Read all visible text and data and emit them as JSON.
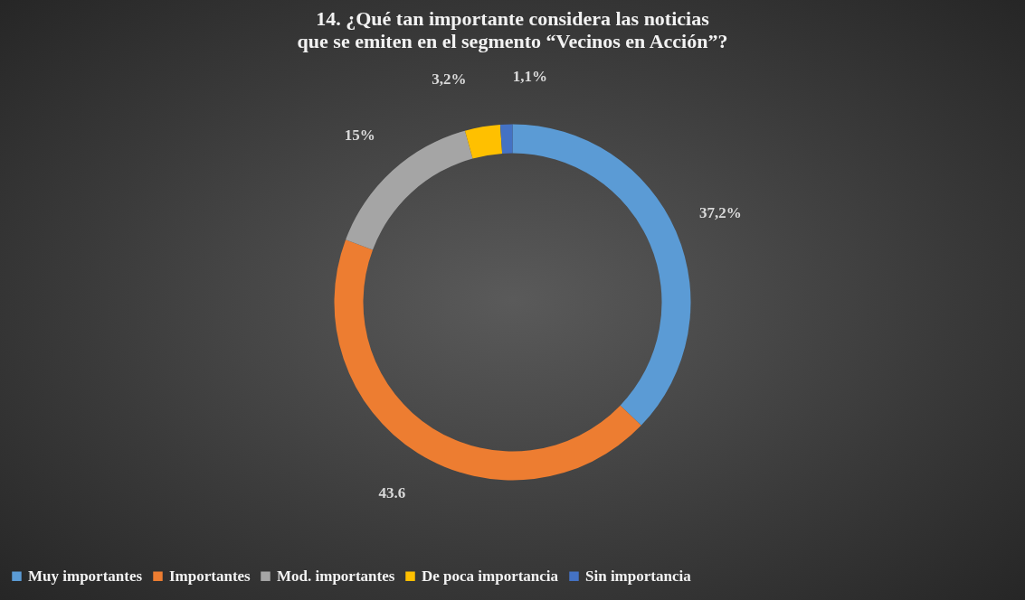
{
  "chart_data": {
    "type": "donut",
    "title": "14. ¿Qué tan importante considera las noticias que se emiten en el segmento “Vecinos en Acción”?",
    "categories": [
      "Muy importantes",
      "Importantes",
      "Mod. importantes",
      "De poca importancia",
      "Sin importancia"
    ],
    "values": [
      37.2,
      43.6,
      15,
      3.2,
      1.1
    ],
    "value_labels": [
      "37,2%",
      "43.6",
      "15%",
      "3,2%",
      "1,1%"
    ],
    "colors": [
      "#5b9bd5",
      "#ed7d31",
      "#a5a5a5",
      "#ffc000",
      "#4472c4"
    ],
    "legend": "bottom"
  }
}
